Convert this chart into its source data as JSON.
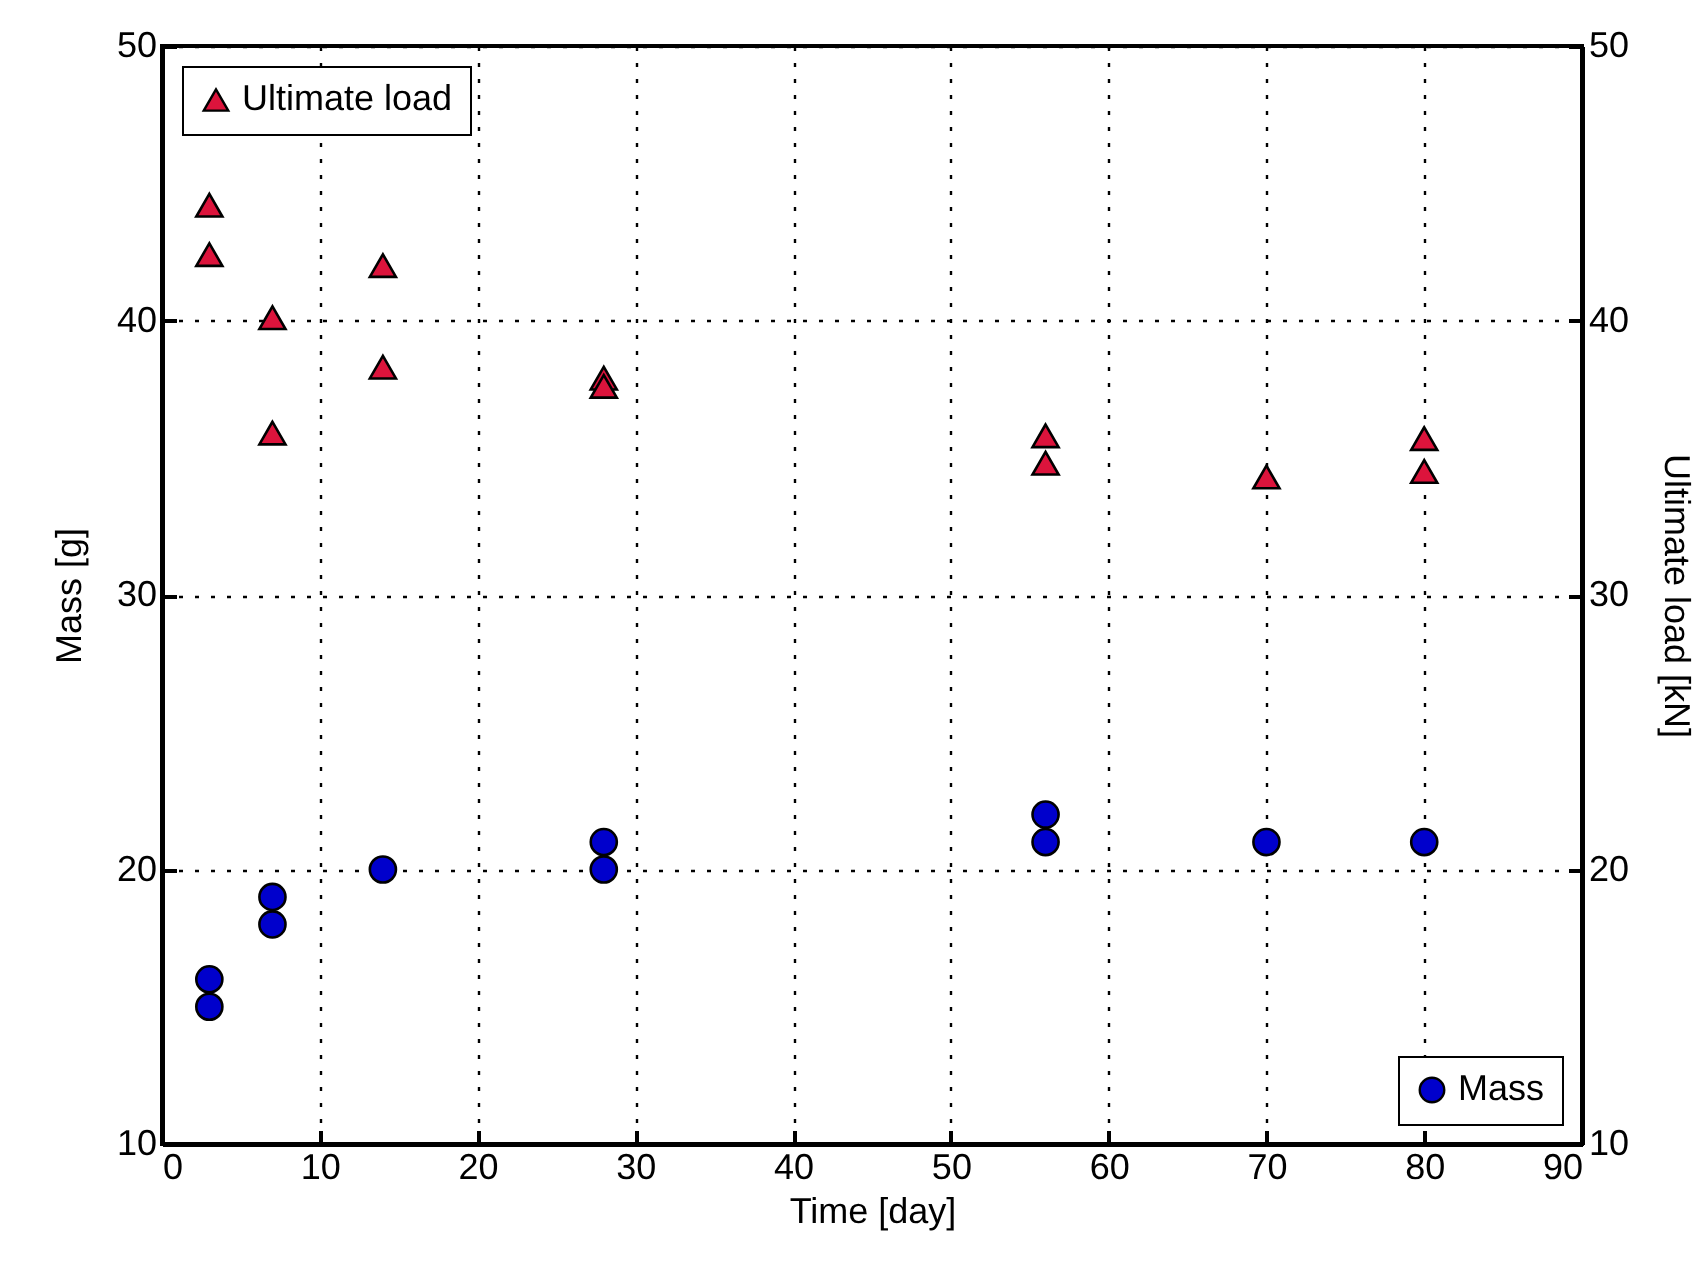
{
  "chart_data": {
    "type": "scatter",
    "xlabel": "Time [day]",
    "ylabel": "Mass [g]",
    "y2label": "Ultimate load [kN]",
    "xlim": [
      0,
      90
    ],
    "xticks": [
      0,
      10,
      20,
      30,
      40,
      50,
      60,
      70,
      80,
      90
    ],
    "ylim": [
      10,
      50
    ],
    "yticks": [
      10,
      20,
      30,
      40,
      50
    ],
    "y2lim": [
      10,
      50
    ],
    "y2ticks": [
      10,
      20,
      30,
      40,
      50
    ],
    "grid": true,
    "legend": "top left",
    "series": [
      {
        "name": "Ultimate load",
        "color": "#dc143c",
        "marker": "triangle",
        "axis": "y2",
        "x": [
          3,
          3,
          7,
          7,
          14,
          14,
          28,
          28,
          56,
          56,
          70,
          80,
          80
        ],
        "values": [
          44.2,
          42.4,
          40.1,
          35.9,
          42.0,
          38.3,
          37.9,
          37.6,
          35.8,
          34.8,
          34.3,
          35.7,
          34.5
        ]
      },
      {
        "name": "Mass",
        "color": "#0000cc",
        "marker": "circle",
        "x": [
          3,
          3,
          7,
          7,
          14,
          28,
          28,
          56,
          56,
          70,
          80
        ],
        "values": [
          16,
          15,
          19,
          18,
          20,
          21,
          20,
          22,
          21,
          21,
          21
        ]
      }
    ]
  }
}
